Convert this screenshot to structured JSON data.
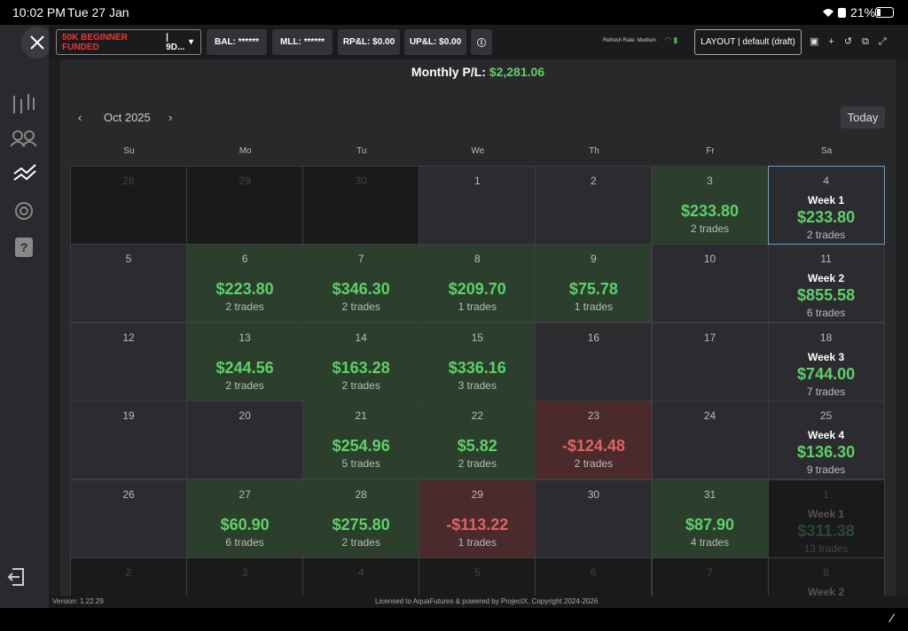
{
  "status_bar": {
    "time": "10:02 PM",
    "date": "Tue 27 Jan",
    "battery": "21%"
  },
  "toolbar": {
    "account": "50K BEGINNER FUNDED",
    "account_suffix": "| 9D...",
    "bal": "BAL: ******",
    "mll": "MLL: ******",
    "rpl": "RP&L: $0.00",
    "upl": "UP&L: $0.00",
    "refresh": "Refresh Rate: Medium",
    "layout": "LAYOUT | default (draft)"
  },
  "summary": {
    "label": "Monthly P/L:",
    "value": "$2,281.06"
  },
  "calendar": {
    "month": "Oct 2025",
    "today": "Today",
    "weekdays": [
      "Su",
      "Mo",
      "Tu",
      "We",
      "Th",
      "Fr",
      "Sa"
    ],
    "weeks": [
      [
        {
          "day": "28"
        },
        {
          "day": "29"
        },
        {
          "day": "30"
        },
        {
          "day": "1"
        },
        {
          "day": "2"
        },
        {
          "day": "3",
          "pnl": "$233.80",
          "trades": "2 trades"
        },
        {
          "day": "4",
          "week": "Week 1",
          "pnl": "$233.80",
          "trades": "2 trades"
        }
      ],
      [
        {
          "day": "5"
        },
        {
          "day": "6",
          "pnl": "$223.80",
          "trades": "2 trades"
        },
        {
          "day": "7",
          "pnl": "$346.30",
          "trades": "2 trades"
        },
        {
          "day": "8",
          "pnl": "$209.70",
          "trades": "1 trades"
        },
        {
          "day": "9",
          "pnl": "$75.78",
          "trades": "1 trades"
        },
        {
          "day": "10"
        },
        {
          "day": "11",
          "week": "Week 2",
          "pnl": "$855.58",
          "trades": "6 trades"
        }
      ],
      [
        {
          "day": "12"
        },
        {
          "day": "13",
          "pnl": "$244.56",
          "trades": "2 trades"
        },
        {
          "day": "14",
          "pnl": "$163.28",
          "trades": "2 trades"
        },
        {
          "day": "15",
          "pnl": "$336.16",
          "trades": "3 trades"
        },
        {
          "day": "16"
        },
        {
          "day": "17"
        },
        {
          "day": "18",
          "week": "Week 3",
          "pnl": "$744.00",
          "trades": "7 trades"
        }
      ],
      [
        {
          "day": "19"
        },
        {
          "day": "20"
        },
        {
          "day": "21",
          "pnl": "$254.96",
          "trades": "5 trades"
        },
        {
          "day": "22",
          "pnl": "$5.82",
          "trades": "2 trades"
        },
        {
          "day": "23",
          "pnl": "-$124.48",
          "trades": "2 trades"
        },
        {
          "day": "24"
        },
        {
          "day": "25",
          "week": "Week 4",
          "pnl": "$136.30",
          "trades": "9 trades"
        }
      ],
      [
        {
          "day": "26"
        },
        {
          "day": "27",
          "pnl": "$60.90",
          "trades": "6 trades"
        },
        {
          "day": "28",
          "pnl": "$275.80",
          "trades": "2 trades"
        },
        {
          "day": "29",
          "pnl": "-$113.22",
          "trades": "1 trades"
        },
        {
          "day": "30"
        },
        {
          "day": "31",
          "pnl": "$87.90",
          "trades": "4 trades"
        },
        {
          "day": "1",
          "week": "Week 1",
          "pnl": "$311.38",
          "trades": "13 trades"
        }
      ],
      [
        {
          "day": "2"
        },
        {
          "day": "3"
        },
        {
          "day": "4"
        },
        {
          "day": "5"
        },
        {
          "day": "6"
        },
        {
          "day": "7"
        },
        {
          "day": "8",
          "week": "Week 2"
        }
      ]
    ]
  },
  "footer": {
    "version": "Version: 1.22.29",
    "license": "Licensed to AquaFutures & powered by ProjectX. Copyright 2024-2026"
  }
}
